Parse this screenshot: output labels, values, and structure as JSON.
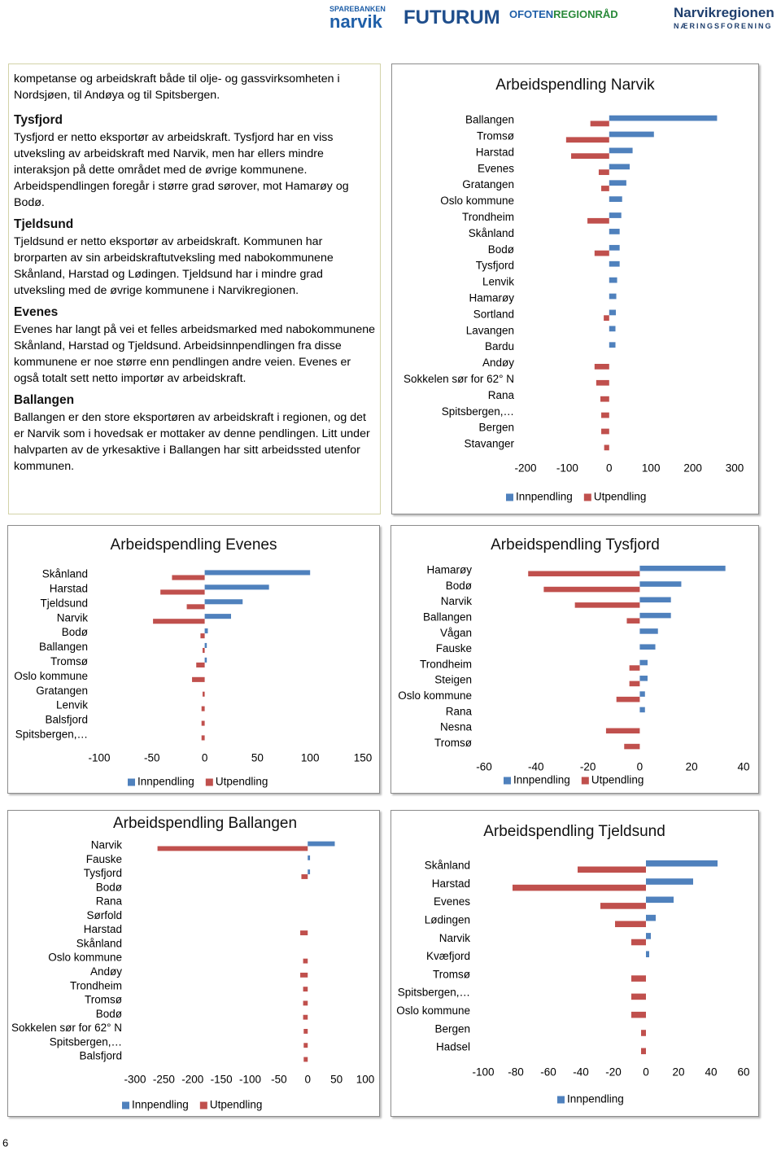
{
  "header": {
    "logos": [
      "SPAREBANKEN",
      "narvik",
      "FUTURUM",
      "OFOTEN",
      "REGIONRÅD",
      "Narvikregionen",
      "NÆRINGSFORENING"
    ]
  },
  "text_box": {
    "intro": "kompetanse og arbeidskraft både til olje- og gassvirksomheten i Nordsjøen, til Andøya og til Spitsbergen.",
    "sections": [
      {
        "heading": "Tysfjord",
        "body": "Tysfjord er netto eksportør av arbeidskraft. Tysfjord har en viss utveksling av arbeidskraft med Narvik, men har ellers mindre interaksjon på dette området med de øvrige kommunene. Arbeidspendlingen foregår i større grad sørover, mot Hamarøy og Bodø."
      },
      {
        "heading": "Tjeldsund",
        "body": "Tjeldsund er netto eksportør av arbeidskraft. Kommunen har brorparten av sin arbeidskraftutveksling med nabokommunene Skånland, Harstad og Lødingen. Tjeldsund har i mindre grad utveksling med de øvrige kommunene i Narvikregionen."
      },
      {
        "heading": "Evenes",
        "body": "Evenes har langt på vei et felles arbeidsmarked med nabokommunene Skånland, Harstad og Tjeldsund. Arbeidsinnpendlingen fra disse kommunene er noe større enn pendlingen andre veien. Evenes er også totalt sett netto importør av arbeidskraft."
      },
      {
        "heading": "Ballangen",
        "body": "Ballangen er den store eksportøren av arbeidskraft i regionen, og det er Narvik som i hovedsak er mottaker av denne pendlingen. Litt under halvparten av de yrkesaktive i Ballangen har sitt arbeidssted utenfor kommunen."
      }
    ]
  },
  "chart_data": [
    {
      "type": "bar",
      "orientation": "horizontal",
      "title": "Arbeidspendling Narvik",
      "categories": [
        "Ballangen",
        "Tromsø",
        "Harstad",
        "Evenes",
        "Gratangen",
        "Oslo kommune",
        "Trondheim",
        "Skånland",
        "Bodø",
        "Tysfjord",
        "Lenvik",
        "Hamarøy",
        "Sortland",
        "Lavangen",
        "Bardu",
        "Andøy",
        "Sokkelen sør for 62° N",
        "Rana",
        "Spitsbergen,…",
        "Bergen",
        "Stavanger"
      ],
      "series": [
        {
          "name": "Innpendling",
          "color": "#4f81bd",
          "values": [
            258,
            107,
            56,
            49,
            41,
            31,
            29,
            25,
            25,
            25,
            19,
            17,
            16,
            15,
            15,
            0,
            0,
            0,
            0,
            0,
            0
          ]
        },
        {
          "name": "Utpendling",
          "color": "#c0504d",
          "values": [
            -45,
            -103,
            -91,
            -25,
            -19,
            0,
            -52,
            0,
            -35,
            0,
            0,
            0,
            -13,
            0,
            0,
            -35,
            -31,
            -21,
            -19,
            -19,
            -12
          ]
        }
      ],
      "xlim": [
        -200,
        300
      ],
      "xticks": [
        -200,
        -100,
        0,
        100,
        200,
        300
      ],
      "legend": "bottom"
    },
    {
      "type": "bar",
      "orientation": "horizontal",
      "title": "Arbeidspendling Evenes",
      "categories": [
        "Skånland",
        "Harstad",
        "Tjeldsund",
        "Narvik",
        "Bodø",
        "Ballangen",
        "Tromsø",
        "Oslo kommune",
        "Gratangen",
        "Lenvik",
        "Balsfjord",
        "Spitsbergen,…"
      ],
      "series": [
        {
          "name": "Innpendling",
          "color": "#4f81bd",
          "values": [
            100,
            61,
            36,
            25,
            3,
            2,
            2,
            0,
            0,
            0,
            0,
            0
          ]
        },
        {
          "name": "Utpendling",
          "color": "#c0504d",
          "values": [
            -31,
            -42,
            -17,
            -49,
            -4,
            -2,
            -8,
            -12,
            -2,
            -3,
            -3,
            -3
          ]
        }
      ],
      "xlim": [
        -100,
        150
      ],
      "xticks": [
        -100,
        -50,
        0,
        50,
        100,
        150
      ],
      "legend": "bottom"
    },
    {
      "type": "bar",
      "orientation": "horizontal",
      "title": "Arbeidspendling Tysfjord",
      "categories": [
        "Hamarøy",
        "Bodø",
        "Narvik",
        "Ballangen",
        "Vågan",
        "Fauske",
        "Trondheim",
        "Steigen",
        "Oslo kommune",
        "Rana",
        "Nesna",
        "Tromsø"
      ],
      "series": [
        {
          "name": "Innpendling",
          "color": "#4f81bd",
          "values": [
            33,
            16,
            12,
            12,
            7,
            6,
            3,
            3,
            2,
            2,
            0,
            0
          ]
        },
        {
          "name": "Utpendling",
          "color": "#c0504d",
          "values": [
            -43,
            -37,
            -25,
            -5,
            0,
            0,
            -4,
            -4,
            -9,
            0,
            -13,
            -6
          ]
        }
      ],
      "xlim": [
        -60,
        40
      ],
      "xticks": [
        -60,
        -40,
        -20,
        0,
        20,
        40
      ],
      "legend": "bottom"
    },
    {
      "type": "bar",
      "orientation": "horizontal",
      "title": "Arbeidspendling Ballangen",
      "categories": [
        "Narvik",
        "Fauske",
        "Tysfjord",
        "Bodø",
        "Rana",
        "Sørfold",
        "Harstad",
        "Skånland",
        "Oslo kommune",
        "Andøy",
        "Trondheim",
        "Tromsø",
        "Bodø",
        "Sokkelen sør for 62° N",
        "Spitsbergen,…",
        "Balsfjord"
      ],
      "series": [
        {
          "name": "Innpendling",
          "color": "#4f81bd",
          "values": [
            47,
            4,
            4,
            0,
            0,
            0,
            0,
            0,
            0,
            0,
            0,
            0,
            0,
            0,
            0,
            0
          ]
        },
        {
          "name": "Utpendling",
          "color": "#c0504d",
          "values": [
            -261,
            0,
            -11,
            0,
            0,
            0,
            -13,
            0,
            -8,
            -13,
            -8,
            -8,
            -8,
            -7,
            -7,
            -7
          ]
        }
      ],
      "xlim": [
        -300,
        100
      ],
      "xticks": [
        -300,
        -250,
        -200,
        -150,
        -100,
        -50,
        0,
        50,
        100
      ],
      "legend": "bottom"
    },
    {
      "type": "bar",
      "orientation": "horizontal",
      "title": "Arbeidspendling Tjeldsund",
      "categories": [
        "Skånland",
        "Harstad",
        "Evenes",
        "Lødingen",
        "Narvik",
        "Kvæfjord",
        "Tromsø",
        "Spitsbergen,…",
        "Oslo kommune",
        "Bergen",
        "Hadsel"
      ],
      "series": [
        {
          "name": "Innpendling",
          "color": "#4f81bd",
          "values": [
            44,
            29,
            17,
            6,
            3,
            2,
            0,
            0,
            0,
            0,
            0
          ]
        },
        {
          "name": "Utpendling",
          "color": "#c0504d",
          "in_legend": false,
          "values": [
            -42,
            -82,
            -28,
            -19,
            -9,
            0,
            -9,
            -9,
            -9,
            -3,
            -3
          ]
        }
      ],
      "xlim": [
        -100,
        60
      ],
      "xticks": [
        -100,
        -80,
        -60,
        -40,
        -20,
        0,
        20,
        40,
        60
      ],
      "legend": "bottom"
    }
  ],
  "page_number": "6"
}
